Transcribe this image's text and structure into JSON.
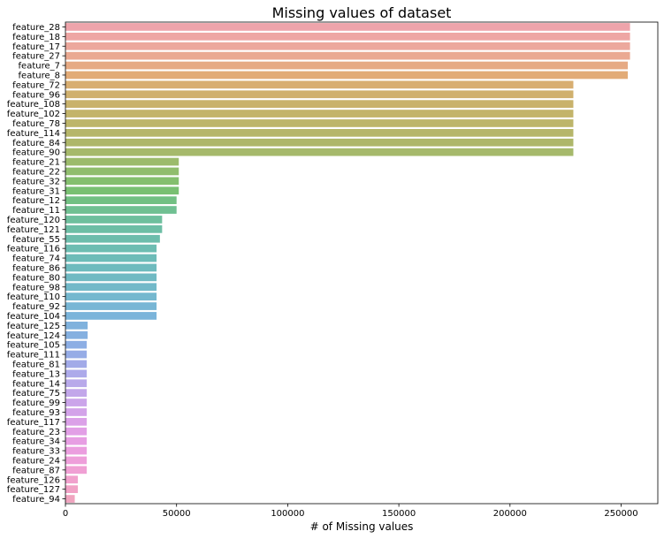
{
  "chart_data": {
    "type": "bar",
    "orientation": "horizontal",
    "title": "Missing values of dataset",
    "xlabel": "# of Missing values",
    "ylabel": "",
    "xlim": [
      0,
      266500
    ],
    "xticks": [
      0,
      50000,
      100000,
      150000,
      200000,
      250000
    ],
    "grid": false,
    "legend": "none",
    "categories": [
      "feature_28",
      "feature_18",
      "feature_17",
      "feature_27",
      "feature_7",
      "feature_8",
      "feature_72",
      "feature_96",
      "feature_108",
      "feature_102",
      "feature_78",
      "feature_114",
      "feature_84",
      "feature_90",
      "feature_21",
      "feature_22",
      "feature_32",
      "feature_31",
      "feature_12",
      "feature_11",
      "feature_120",
      "feature_121",
      "feature_55",
      "feature_116",
      "feature_74",
      "feature_86",
      "feature_80",
      "feature_98",
      "feature_110",
      "feature_92",
      "feature_104",
      "feature_125",
      "feature_124",
      "feature_105",
      "feature_111",
      "feature_81",
      "feature_13",
      "feature_14",
      "feature_75",
      "feature_99",
      "feature_93",
      "feature_117",
      "feature_23",
      "feature_34",
      "feature_33",
      "feature_24",
      "feature_87",
      "feature_126",
      "feature_127",
      "feature_94"
    ],
    "values": [
      254000,
      254000,
      254000,
      254000,
      253000,
      253000,
      228500,
      228500,
      228500,
      228500,
      228500,
      228500,
      228500,
      228500,
      51000,
      51000,
      51000,
      51000,
      50000,
      50000,
      43500,
      43500,
      42500,
      41000,
      41000,
      41000,
      41000,
      41000,
      41000,
      41000,
      41000,
      10000,
      10000,
      9600,
      9600,
      9600,
      9600,
      9600,
      9600,
      9600,
      9600,
      9600,
      9600,
      9600,
      9600,
      9600,
      9600,
      5600,
      5600,
      4200
    ],
    "colors": [
      "#eea4ab",
      "#eea6a4",
      "#eca89d",
      "#eaa992",
      "#e6aa84",
      "#e2ab77",
      "#d8ae71",
      "#d0b06d",
      "#c9b26b",
      "#c3b46a",
      "#bdb56a",
      "#b6b66a",
      "#aeb76a",
      "#a6b96b",
      "#9cbb6c",
      "#90bd6d",
      "#84bf6e",
      "#79c072",
      "#72c083",
      "#70c092",
      "#6ebf9d",
      "#6dbea5",
      "#6dbdac",
      "#6dbdb2",
      "#6dbcb8",
      "#6ebbbe",
      "#70bac3",
      "#72b9c9",
      "#75b8cf",
      "#78b6d5",
      "#7bb4da",
      "#80b2dd",
      "#85b0e0",
      "#8daee4",
      "#96ace6",
      "#a2aae8",
      "#adaaea",
      "#b8a9ea",
      "#c2a7ea",
      "#cba5ea",
      "#d3a3e9",
      "#dba1e8",
      "#e29fe6",
      "#e79ee3",
      "#eb9edf",
      "#ee9fda",
      "#f0a0d4",
      "#f1a1cd",
      "#f1a2c6",
      "#f0a4bf"
    ]
  }
}
